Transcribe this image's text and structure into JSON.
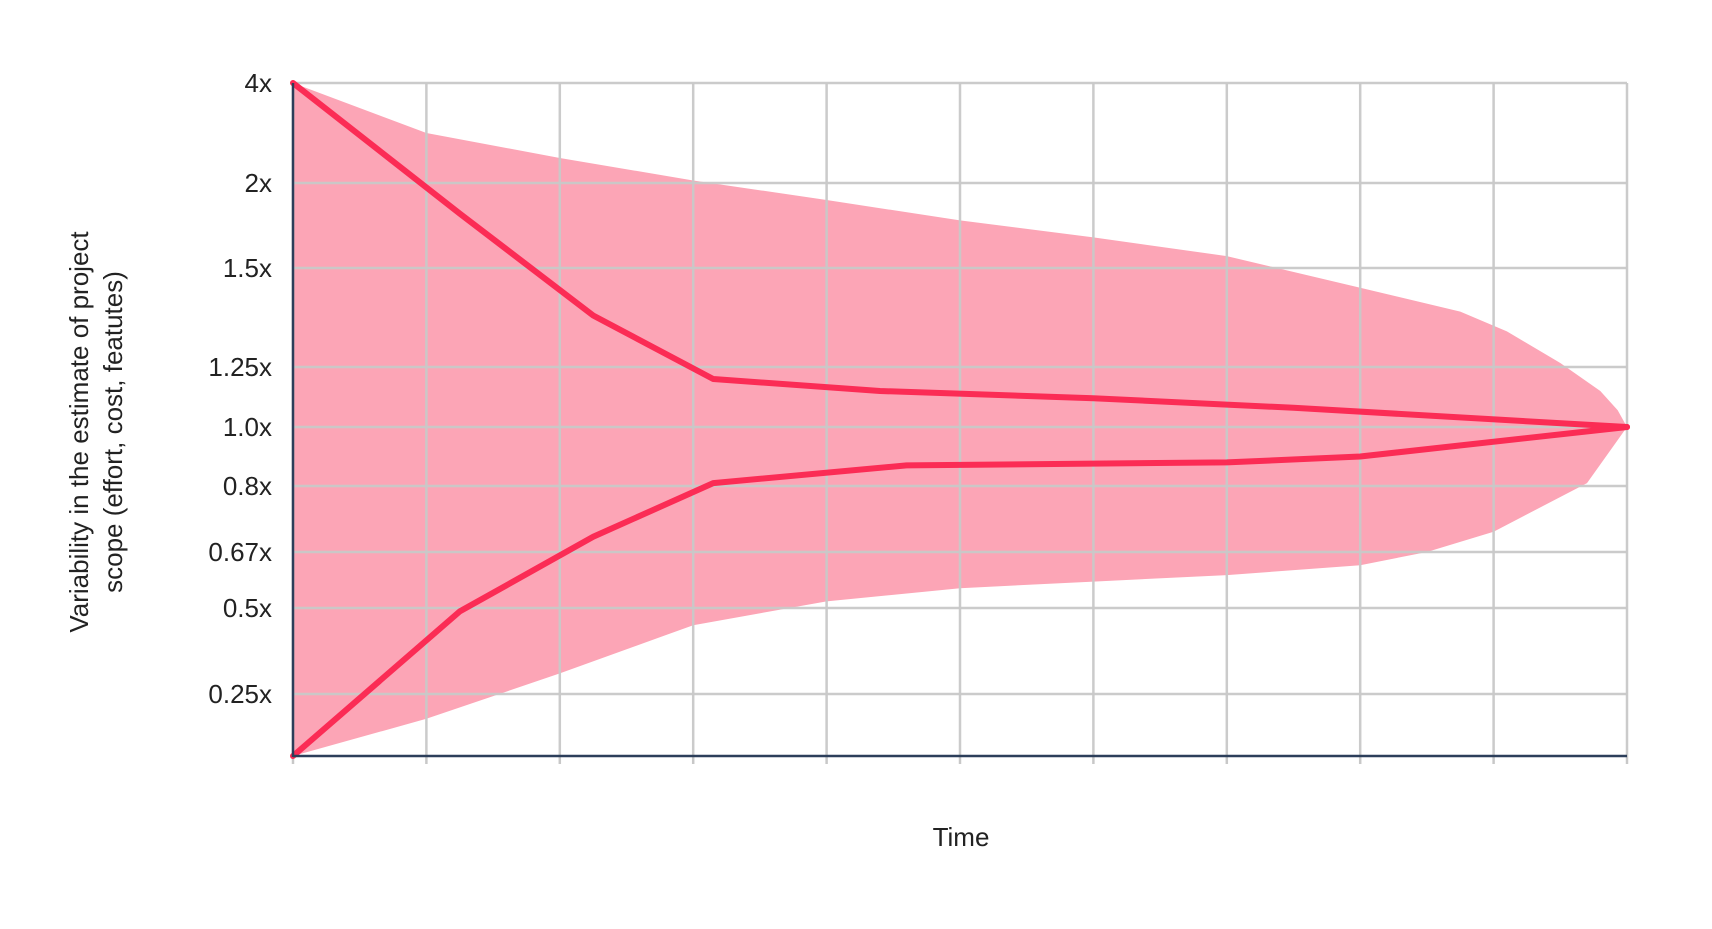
{
  "chart_data": {
    "type": "area",
    "title": "",
    "xlabel": "Time",
    "ylabel_lines": [
      "Variability in the estimate of project",
      "scope (effort, cost, featutes)"
    ],
    "x_domain": [
      0,
      10
    ],
    "x_ticks": [
      0,
      1,
      2,
      3,
      4,
      5,
      6,
      7,
      8,
      9,
      10
    ],
    "y_ticks": [
      {
        "value": 4,
        "label": "4x"
      },
      {
        "value": 2,
        "label": "2x"
      },
      {
        "value": 1.5,
        "label": "1.5x"
      },
      {
        "value": 1.25,
        "label": "1.25x"
      },
      {
        "value": 1.0,
        "label": "1.0x"
      },
      {
        "value": 0.8,
        "label": "0.8x"
      },
      {
        "value": 0.67,
        "label": "0.67x"
      },
      {
        "value": 0.5,
        "label": "0.5x"
      },
      {
        "value": 0.25,
        "label": "0.25x"
      }
    ],
    "y_bottom": 0.0,
    "grid": true,
    "colors": {
      "band": "#fca5b6",
      "line": "#fb2c55",
      "grid": "#c8c8c8",
      "axis": "#2c3e5a"
    },
    "band": {
      "upper": [
        [
          0,
          4.0
        ],
        [
          1,
          3.0
        ],
        [
          2,
          2.5
        ],
        [
          3,
          2.05
        ],
        [
          4,
          1.9
        ],
        [
          5,
          1.78
        ],
        [
          6,
          1.68
        ],
        [
          7,
          1.57
        ],
        [
          8,
          1.45
        ],
        [
          8.75,
          1.39
        ],
        [
          9.1,
          1.34
        ],
        [
          9.5,
          1.26
        ],
        [
          9.8,
          1.15
        ],
        [
          9.93,
          1.07
        ],
        [
          10,
          1.0
        ]
      ],
      "lower": [
        [
          0,
          0.0
        ],
        [
          1,
          0.15
        ],
        [
          2,
          0.31
        ],
        [
          3,
          0.45
        ],
        [
          4,
          0.52
        ],
        [
          5,
          0.56
        ],
        [
          6,
          0.58
        ],
        [
          7,
          0.6
        ],
        [
          8,
          0.63
        ],
        [
          8.5,
          0.67
        ],
        [
          9,
          0.71
        ],
        [
          9.7,
          0.81
        ],
        [
          10,
          1.0
        ]
      ]
    },
    "series": [
      {
        "values": [
          [
            0,
            4.0
          ],
          [
            1.25,
            1.82
          ],
          [
            2.25,
            1.38
          ],
          [
            3.15,
            1.2
          ],
          [
            4.4,
            1.15
          ],
          [
            6,
            1.12
          ],
          [
            7.5,
            1.08
          ],
          [
            10,
            1.0
          ]
        ]
      },
      {
        "values": [
          [
            0,
            0.0
          ],
          [
            1.25,
            0.49
          ],
          [
            2.25,
            0.7
          ],
          [
            3.15,
            0.81
          ],
          [
            4.6,
            0.87
          ],
          [
            7,
            0.88
          ],
          [
            8,
            0.9
          ],
          [
            10,
            1.0
          ]
        ]
      }
    ]
  }
}
